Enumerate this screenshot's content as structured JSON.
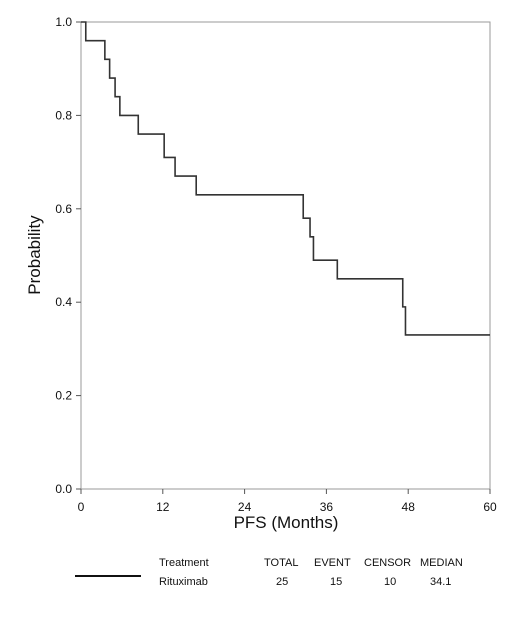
{
  "chart_data": {
    "type": "line",
    "step": true,
    "xlabel": "PFS  (Months)",
    "ylabel": "Probability",
    "xlim": [
      0,
      60
    ],
    "ylim": [
      0,
      1.0
    ],
    "xticks": [
      0,
      12,
      24,
      36,
      48,
      60
    ],
    "yticks": [
      "0.0",
      "0.2",
      "0.4",
      "0.6",
      "0.8",
      "1.0"
    ],
    "grid": false,
    "series": [
      {
        "name": "Rituximab",
        "color": "#333333",
        "x": [
          0,
          0.7,
          3.5,
          4.2,
          5,
          5.7,
          8.4,
          12.2,
          13.8,
          16.9,
          32.6,
          33.6,
          34.1,
          37.6,
          47.2,
          47.6,
          60
        ],
        "y": [
          1.0,
          0.96,
          0.92,
          0.88,
          0.84,
          0.8,
          0.76,
          0.71,
          0.67,
          0.63,
          0.58,
          0.54,
          0.49,
          0.45,
          0.39,
          0.33,
          0.33
        ]
      }
    ]
  },
  "legend": {
    "headers": {
      "treatment": "Treatment",
      "total": "TOTAL",
      "event": "EVENT",
      "censor": "CENSOR",
      "median": "MEDIAN"
    },
    "row": {
      "treatment": "Rituximab",
      "total": "25",
      "event": "15",
      "censor": "10",
      "median": "34.1"
    }
  }
}
